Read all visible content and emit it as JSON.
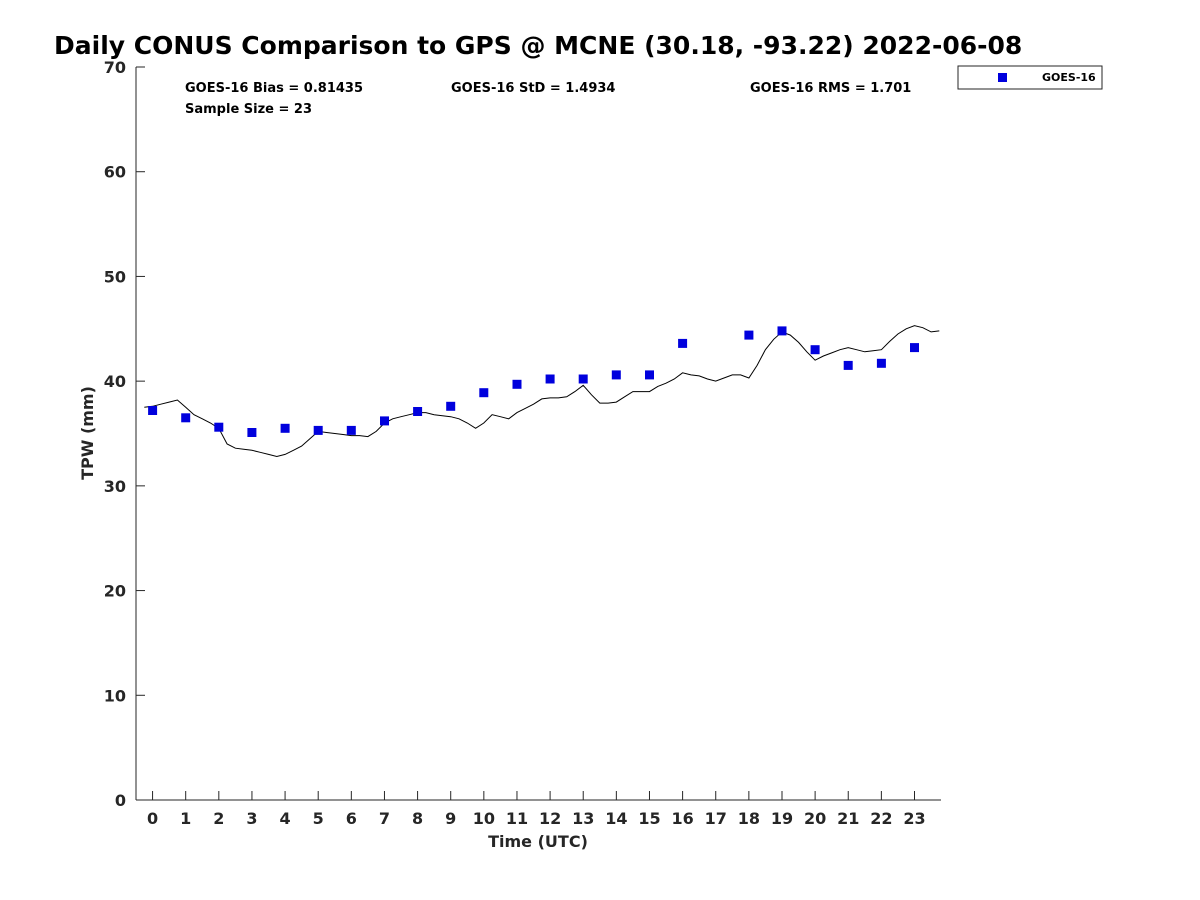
{
  "chart_data": {
    "type": "scatter",
    "title": "Daily CONUS Comparison to GPS @ MCNE (30.18, -93.22) 2022-06-08",
    "xlabel": "Time (UTC)",
    "ylabel": "TPW (mm)",
    "xlim": [
      -0.5,
      23.8
    ],
    "ylim": [
      0,
      70
    ],
    "x_ticks": [
      0,
      1,
      2,
      3,
      4,
      5,
      6,
      7,
      8,
      9,
      10,
      11,
      12,
      13,
      14,
      15,
      16,
      17,
      18,
      19,
      20,
      21,
      22,
      23
    ],
    "y_ticks": [
      0,
      10,
      20,
      30,
      40,
      50,
      60,
      70
    ],
    "grid": false,
    "legend": {
      "placement": "top-right outside",
      "entries": [
        "GOES-16"
      ]
    },
    "colors": {
      "goes16": "#0000dd",
      "gps_line": "#000000",
      "axes": "#262626"
    },
    "stats": {
      "bias": "GOES-16 Bias = 0.81435",
      "std": "GOES-16 StD = 1.4934",
      "rms": "GOES-16 RMS = 1.701",
      "sample": "Sample Size = 23"
    },
    "series": [
      {
        "name": "GOES-16",
        "kind": "markers",
        "x": [
          0,
          1,
          2,
          3,
          4,
          5,
          6,
          7,
          8,
          9,
          10,
          11,
          12,
          13,
          14,
          15,
          16,
          18,
          19,
          20,
          21,
          22,
          23
        ],
        "y": [
          37.2,
          36.5,
          35.6,
          35.1,
          35.5,
          35.3,
          35.3,
          36.2,
          37.1,
          37.6,
          38.9,
          39.7,
          40.2,
          40.2,
          40.6,
          40.6,
          43.6,
          44.4,
          44.8,
          43.0,
          41.5,
          41.7,
          43.2
        ]
      },
      {
        "kind": "line",
        "x": [
          -0.25,
          0,
          0.25,
          0.5,
          0.75,
          1,
          1.25,
          1.5,
          1.75,
          2,
          2.25,
          2.5,
          2.75,
          3,
          3.25,
          3.5,
          3.75,
          4,
          4.25,
          4.5,
          4.75,
          5,
          5.25,
          5.5,
          5.75,
          6,
          6.25,
          6.5,
          6.75,
          7,
          7.25,
          7.5,
          7.75,
          8,
          8.25,
          8.5,
          8.75,
          9,
          9.25,
          9.5,
          9.75,
          10,
          10.25,
          10.5,
          10.75,
          11,
          11.25,
          11.5,
          11.75,
          12,
          12.25,
          12.5,
          12.75,
          13,
          13.25,
          13.5,
          13.75,
          14,
          14.25,
          14.5,
          14.75,
          15,
          15.25,
          15.5,
          15.75,
          16,
          16.25,
          16.5,
          16.75,
          17,
          17.25,
          17.5,
          17.75,
          18,
          18.25,
          18.5,
          18.75,
          19,
          19.25,
          19.5,
          19.75,
          20,
          20.25,
          20.5,
          20.75,
          21,
          21.25,
          21.5,
          21.75,
          22,
          22.25,
          22.5,
          22.75,
          23,
          23.25,
          23.5,
          23.75
        ],
        "y": [
          37.5,
          37.6,
          37.8,
          38.0,
          38.2,
          37.5,
          36.8,
          36.4,
          36.0,
          35.5,
          34.0,
          33.6,
          33.5,
          33.4,
          33.2,
          33.0,
          32.8,
          33.0,
          33.4,
          33.8,
          34.5,
          35.2,
          35.1,
          35.0,
          34.9,
          34.8,
          34.8,
          34.7,
          35.2,
          36.0,
          36.4,
          36.6,
          36.8,
          37.0,
          37.0,
          36.8,
          36.7,
          36.6,
          36.4,
          36.0,
          35.5,
          36.0,
          36.8,
          36.6,
          36.4,
          37.0,
          37.4,
          37.8,
          38.3,
          38.4,
          38.4,
          38.5,
          39.0,
          39.6,
          38.7,
          37.9,
          37.9,
          38.0,
          38.5,
          39.0,
          39.0,
          39.0,
          39.5,
          39.8,
          40.2,
          40.8,
          40.6,
          40.5,
          40.2,
          40.0,
          40.3,
          40.6,
          40.6,
          40.3,
          41.5,
          43.0,
          44.0,
          44.7,
          44.4,
          43.7,
          42.8,
          42.0,
          42.4,
          42.7,
          43.0,
          43.2,
          43.0,
          42.8,
          42.9,
          43.0,
          43.8,
          44.5,
          45.0,
          45.3,
          45.1,
          44.7,
          44.8
        ]
      }
    ]
  }
}
